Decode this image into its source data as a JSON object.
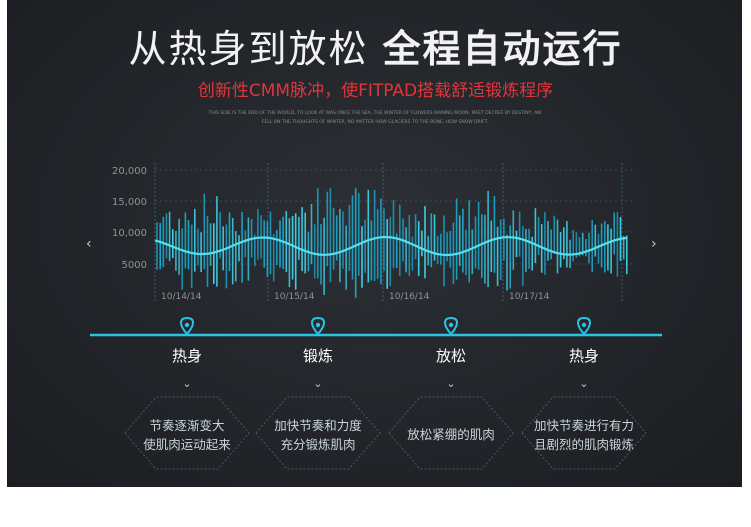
{
  "header": {
    "title_light": "从热身到放松",
    "title_bold": "全程自动运行",
    "subtitle": "创新性CMM脉冲，使FITPAD搭载舒适锻炼程序",
    "fine_print_line1": "THIS SIDE IS THE END OF THE WORLD, TO LOOK AT WAS ONCE THE SEA, THE WINTER OF FLOWERS WANING MOON. MEET DECREE BY DESTINY, AW",
    "fine_print_line2": "FELL ON THE THOUGHTS OF WINTER, NO MATTER HOW GLACIERS TO THE BONE, HOW SNOW DRIFT."
  },
  "nav": {
    "prev_icon": "chevron-left-icon",
    "next_icon": "chevron-right-icon"
  },
  "chart_data": {
    "type": "bar",
    "y_tick_labels": [
      "20,000",
      "15,000",
      "10,000",
      "5000"
    ],
    "x_tick_labels": [
      "10/14/14",
      "10/15/14",
      "10/16/14",
      "10/17/14"
    ],
    "ylim": [
      0,
      20000
    ],
    "grid": true,
    "colors": {
      "bars": "#1aa6c9",
      "bars_light": "#3fd0e6",
      "line": "#55e0f0",
      "grid": "#3c6f86",
      "axis_text": "#8e9296"
    }
  },
  "timeline": {
    "line_color": "#29c3e6",
    "pin_icon": "location-pin-icon",
    "stages": [
      {
        "label": "热身",
        "desc_line1": "节奏逐渐变大",
        "desc_line2": "使肌肉运动起来"
      },
      {
        "label": "锻炼",
        "desc_line1": "加快节奏和力度",
        "desc_line2": "充分锻炼肌肉"
      },
      {
        "label": "放松",
        "desc_line1": "放松紧绷的肌肉",
        "desc_line2": ""
      },
      {
        "label": "热身",
        "desc_line1": "加快节奏进行有力",
        "desc_line2": "且剧烈的肌肉锻炼"
      }
    ]
  }
}
